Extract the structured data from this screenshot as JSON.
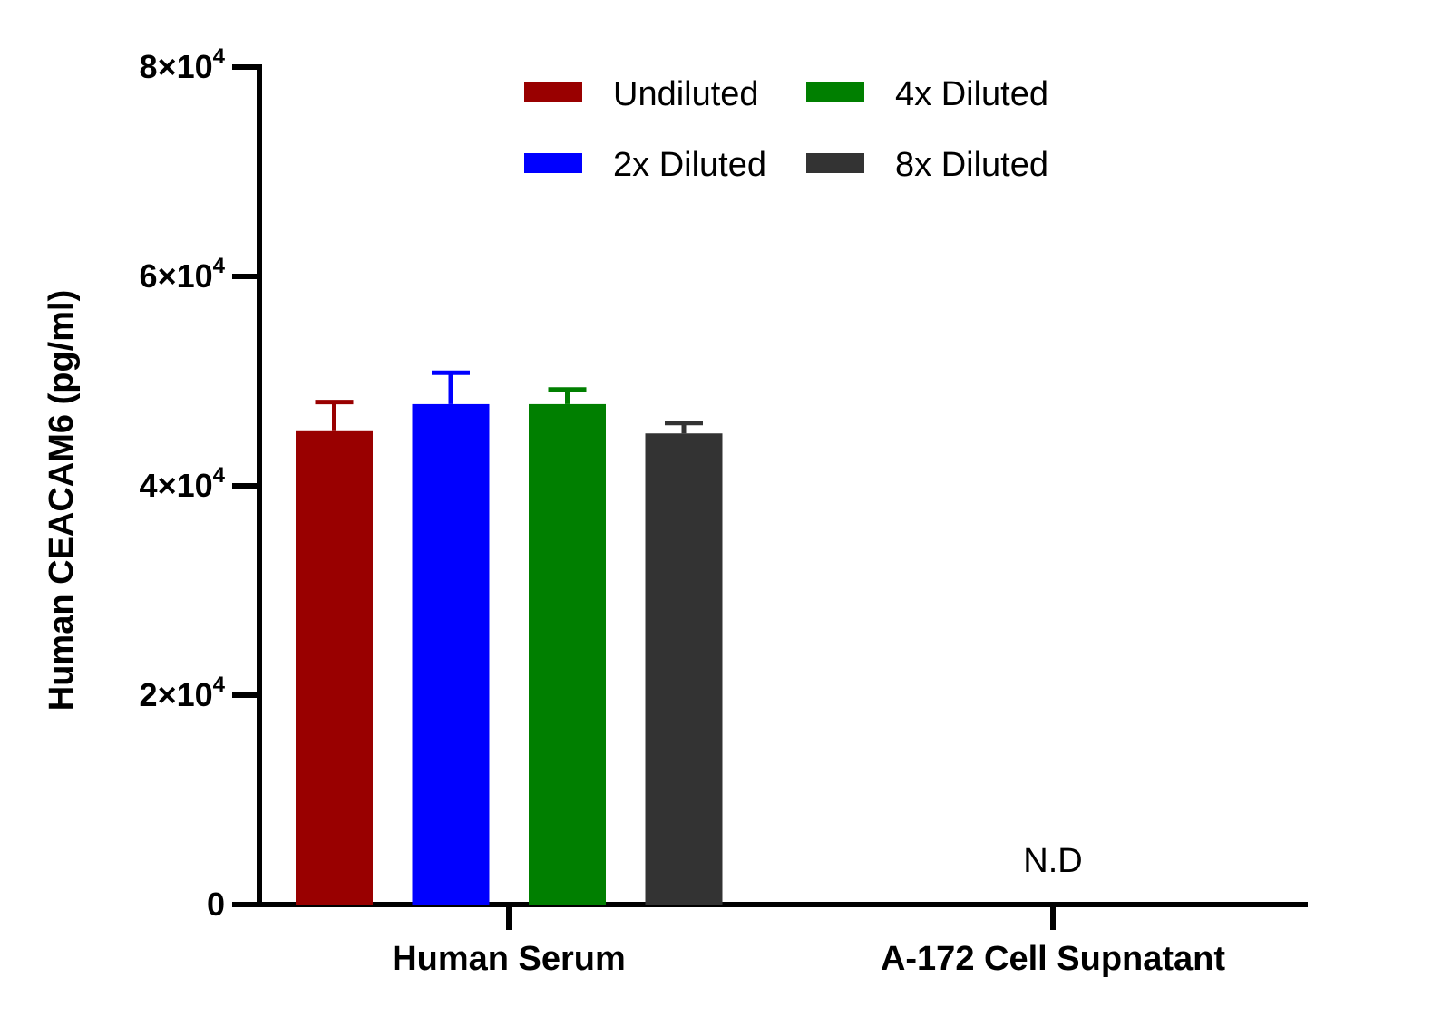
{
  "chart_data": {
    "type": "bar",
    "title": "",
    "xlabel": "",
    "ylabel": "Human CEACAM6 (pg/ml)",
    "ylim": [
      0,
      80000
    ],
    "grid": false,
    "legend_position": "top",
    "categories": [
      "Human Serum",
      "A-172 Cell Supnatant"
    ],
    "yticks": [
      {
        "value": 0,
        "mant": "0",
        "exp": ""
      },
      {
        "value": 20000,
        "mant": "2×10",
        "exp": "4"
      },
      {
        "value": 40000,
        "mant": "4×10",
        "exp": "4"
      },
      {
        "value": 60000,
        "mant": "6×10",
        "exp": "4"
      },
      {
        "value": 80000,
        "mant": "8×10",
        "exp": "4"
      }
    ],
    "series": [
      {
        "name": "Undiluted",
        "color": "#990000",
        "values": [
          45300,
          null
        ],
        "errors": [
          2700,
          null
        ]
      },
      {
        "name": "2x Diluted",
        "color": "#0000ff",
        "values": [
          47800,
          null
        ],
        "errors": [
          3000,
          null
        ]
      },
      {
        "name": "4x Diluted",
        "color": "#007f00",
        "values": [
          47800,
          null
        ],
        "errors": [
          1400,
          null
        ]
      },
      {
        "name": "8x Diluted",
        "color": "#333333",
        "values": [
          45000,
          null
        ],
        "errors": [
          1000,
          null
        ]
      }
    ],
    "annotations": [
      {
        "category": "A-172 Cell Supnatant",
        "text": "N.D"
      }
    ]
  }
}
